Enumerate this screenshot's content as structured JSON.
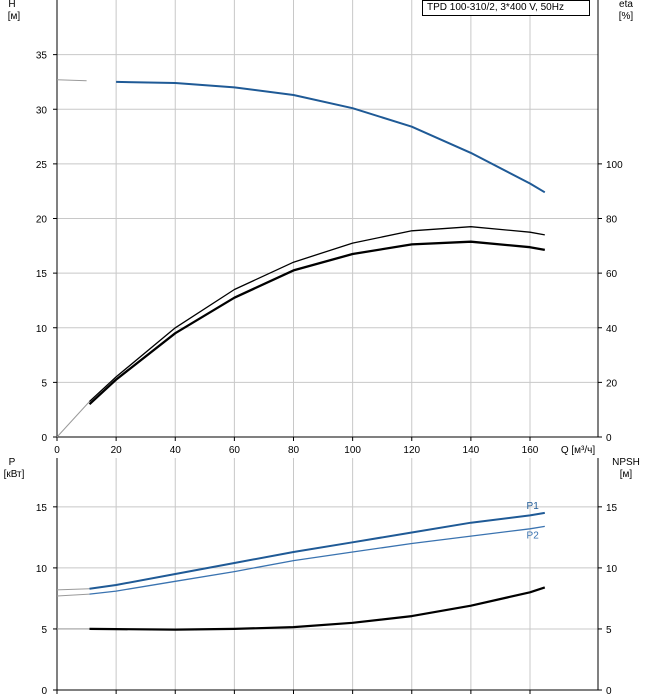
{
  "title": "TPD 100-310/2, 3*400 V, 50Hz",
  "colors": {
    "head": "#1f5a96",
    "p1": "#1f5a96",
    "p2": "#3a73b0",
    "efficiency": "#000000",
    "npsh": "#000000",
    "grid": "#c8c8c8"
  },
  "chart_data": [
    {
      "type": "line",
      "name": "head_efficiency",
      "xlabel": "Q [м³/ч]",
      "x_ticks": [
        0,
        20,
        40,
        60,
        80,
        100,
        120,
        140,
        160
      ],
      "xlim": [
        0,
        183
      ],
      "left_axis": {
        "label_line1": "H",
        "label_line2": "[м]",
        "ticks": [
          0,
          5,
          10,
          15,
          20,
          25,
          30,
          35
        ],
        "ylim": [
          0,
          40
        ]
      },
      "right_axis": {
        "label_line1": "eta",
        "label_line2": "[%]",
        "ticks": [
          0,
          20,
          40,
          60,
          80,
          100
        ],
        "ylim": [
          0,
          160
        ]
      },
      "grid": true,
      "series": [
        {
          "key": "head",
          "axis": "left",
          "x": [
            0,
            10,
            20,
            40,
            60,
            80,
            100,
            120,
            140,
            160,
            165
          ],
          "y": [
            32.7,
            32.6,
            32.5,
            32.4,
            32.0,
            31.3,
            30.1,
            28.4,
            26.0,
            23.2,
            22.4
          ],
          "solid_from": 11
        },
        {
          "key": "eta_thin",
          "axis": "right",
          "x": [
            0,
            11,
            20,
            40,
            60,
            80,
            100,
            120,
            140,
            160,
            165
          ],
          "y": [
            0,
            13,
            22,
            40,
            54,
            64,
            71,
            75.5,
            77,
            75,
            74
          ],
          "solid_from": 11
        },
        {
          "key": "eta_bold",
          "axis": "right",
          "x": [
            11,
            20,
            40,
            60,
            80,
            100,
            120,
            140,
            160,
            165
          ],
          "y": [
            12,
            21,
            38,
            51,
            61,
            67,
            70.5,
            71.5,
            69.5,
            68.5
          ],
          "solid_from": 11
        }
      ]
    },
    {
      "type": "line",
      "name": "power_npsh",
      "xlabel": "",
      "x_ticks": [
        0,
        20,
        40,
        60,
        80,
        100,
        120,
        140,
        160
      ],
      "xlim": [
        0,
        183
      ],
      "left_axis": {
        "label_line1": "P",
        "label_line2": "[кВт]",
        "ticks": [
          0,
          5,
          10,
          15
        ],
        "ylim": [
          0,
          19
        ]
      },
      "right_axis": {
        "label_line1": "NPSH",
        "label_line2": "[м]",
        "ticks": [
          0,
          5,
          10,
          15
        ],
        "ylim": [
          0,
          19
        ]
      },
      "grid": true,
      "series": [
        {
          "key": "p1",
          "name": "P1",
          "axis": "left",
          "x": [
            0,
            11,
            20,
            40,
            60,
            80,
            100,
            120,
            140,
            160,
            165
          ],
          "y": [
            8.2,
            8.3,
            8.6,
            9.5,
            10.4,
            11.3,
            12.1,
            12.9,
            13.7,
            14.3,
            14.5
          ],
          "solid_from": 11
        },
        {
          "key": "p2",
          "name": "P2",
          "axis": "left",
          "x": [
            0,
            11,
            20,
            40,
            60,
            80,
            100,
            120,
            140,
            160,
            165
          ],
          "y": [
            7.7,
            7.85,
            8.1,
            8.9,
            9.7,
            10.6,
            11.3,
            12.0,
            12.6,
            13.2,
            13.4
          ],
          "solid_from": 11
        },
        {
          "key": "npsh",
          "axis": "right",
          "x": [
            0,
            11,
            40,
            60,
            80,
            100,
            120,
            140,
            160,
            165
          ],
          "y": [
            5.0,
            5.0,
            4.95,
            5.0,
            5.15,
            5.5,
            6.05,
            6.9,
            8.0,
            8.4
          ],
          "solid_from": 11
        }
      ]
    }
  ]
}
